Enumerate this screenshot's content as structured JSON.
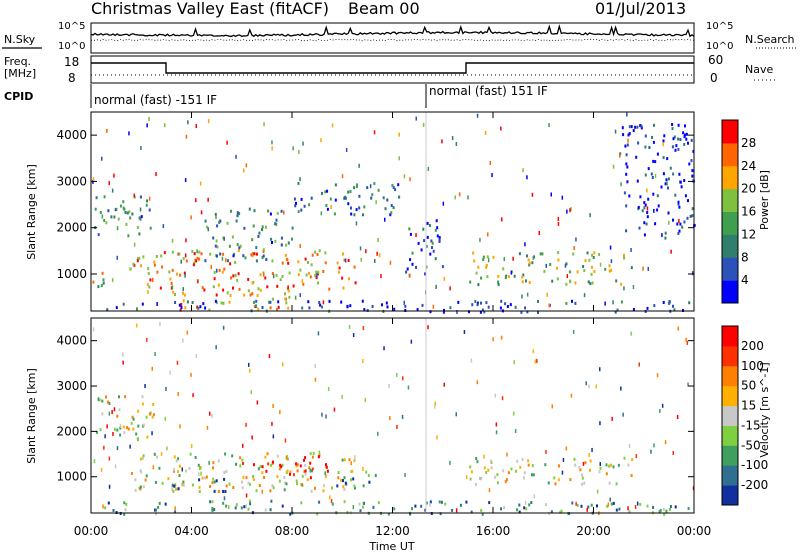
{
  "header": {
    "title": "Christmas Valley East (fitACF)",
    "beam": "Beam 00",
    "date": "01/Jul/2013"
  },
  "panels": {
    "nsky_label": "N.Sky",
    "nsearch_label": "N.Search",
    "freq_label_1": "Freq.",
    "freq_label_2": "[MHz]",
    "nave_label": "Nave",
    "cpid_label": "CPID",
    "cpid_1": "normal (fast) -151 IF",
    "cpid_2": "normal (fast) 151 IF",
    "noise_ticks": [
      "10^5",
      "10^0"
    ],
    "freq_ticks": [
      "18",
      "8"
    ],
    "nave_ticks": [
      "60",
      "0"
    ]
  },
  "chart_data": [
    {
      "type": "heatmap",
      "name": "power",
      "xlabel": "Time UT",
      "ylabel": "Slant Range [km]",
      "x_ticks": [
        "00:00",
        "04:00",
        "08:00",
        "12:00",
        "16:00",
        "20:00",
        "00:00"
      ],
      "xlim_hours": [
        0,
        24
      ],
      "ylim_km": [
        200,
        4500
      ],
      "y_ticks": [
        1000,
        2000,
        3000,
        4000
      ],
      "colorbar_label": "Power [dB]",
      "colorbar_ticks": [
        "28",
        "24",
        "20",
        "16",
        "12",
        "8",
        "4"
      ],
      "colorbar_colors": [
        "#0000ff",
        "#2a52b8",
        "#2f7f6a",
        "#3f9f4f",
        "#7fc040",
        "#ffa500",
        "#ff6600",
        "#ff0000"
      ],
      "echo_regions": [
        {
          "t": [
            0.0,
            2.4
          ],
          "r": [
            1850,
            2750
          ],
          "level": 0.35
        },
        {
          "t": [
            0.0,
            0.5
          ],
          "r": [
            600,
            1300
          ],
          "level": 0.6
        },
        {
          "t": [
            1.5,
            10.5
          ],
          "r": [
            700,
            1550
          ],
          "level": 0.75
        },
        {
          "t": [
            4.5,
            8.0
          ],
          "r": [
            1300,
            2450
          ],
          "level": 0.35
        },
        {
          "t": [
            3.0,
            8.0
          ],
          "r": [
            250,
            700
          ],
          "level": 0.75
        },
        {
          "t": [
            8.0,
            12.5
          ],
          "r": [
            2300,
            3000
          ],
          "level": 0.25
        },
        {
          "t": [
            12.5,
            14.0
          ],
          "r": [
            900,
            2200
          ],
          "level": 0.2
        },
        {
          "t": [
            15.0,
            21.5
          ],
          "r": [
            800,
            1500
          ],
          "level": 0.5
        },
        {
          "t": [
            21.0,
            24.0
          ],
          "r": [
            1800,
            4300
          ],
          "level": 0.1
        },
        {
          "t": [
            0.5,
            24.0
          ],
          "r": [
            200,
            450
          ],
          "level": 0.15
        }
      ]
    },
    {
      "type": "heatmap",
      "name": "velocity",
      "xlabel": "Time UT",
      "ylabel": "Slant Range [km]",
      "x_ticks": [
        "00:00",
        "04:00",
        "08:00",
        "12:00",
        "16:00",
        "20:00",
        "00:00"
      ],
      "xlim_hours": [
        0,
        24
      ],
      "ylim_km": [
        200,
        4500
      ],
      "y_ticks": [
        1000,
        2000,
        3000,
        4000
      ],
      "colorbar_label": "Velocity [m s^-1]",
      "colorbar_ticks": [
        "200",
        "100",
        "50",
        "15",
        "-15",
        "-50",
        "-100",
        "-200"
      ],
      "colorbar_colors": [
        "#1030a0",
        "#2f6f8f",
        "#3f9f5f",
        "#7fd040",
        "#c8c8c8",
        "#ffb000",
        "#ff8000",
        "#ff3000",
        "#ff0000"
      ],
      "echo_regions": [
        {
          "t": [
            0.0,
            2.5
          ],
          "r": [
            1850,
            2800
          ],
          "level": 0.5
        },
        {
          "t": [
            1.5,
            10.5
          ],
          "r": [
            700,
            1550
          ],
          "level": 0.5
        },
        {
          "t": [
            6.0,
            9.5
          ],
          "r": [
            1000,
            1500
          ],
          "level": 0.95
        },
        {
          "t": [
            9.5,
            11.5
          ],
          "r": [
            800,
            1200
          ],
          "level": 0.2
        },
        {
          "t": [
            2.5,
            5.5
          ],
          "r": [
            700,
            1000
          ],
          "level": 0.2
        },
        {
          "t": [
            15.0,
            21.5
          ],
          "r": [
            850,
            1450
          ],
          "level": 0.5
        },
        {
          "t": [
            0.5,
            24.0
          ],
          "r": [
            200,
            500
          ],
          "level": 0.25
        }
      ]
    }
  ]
}
